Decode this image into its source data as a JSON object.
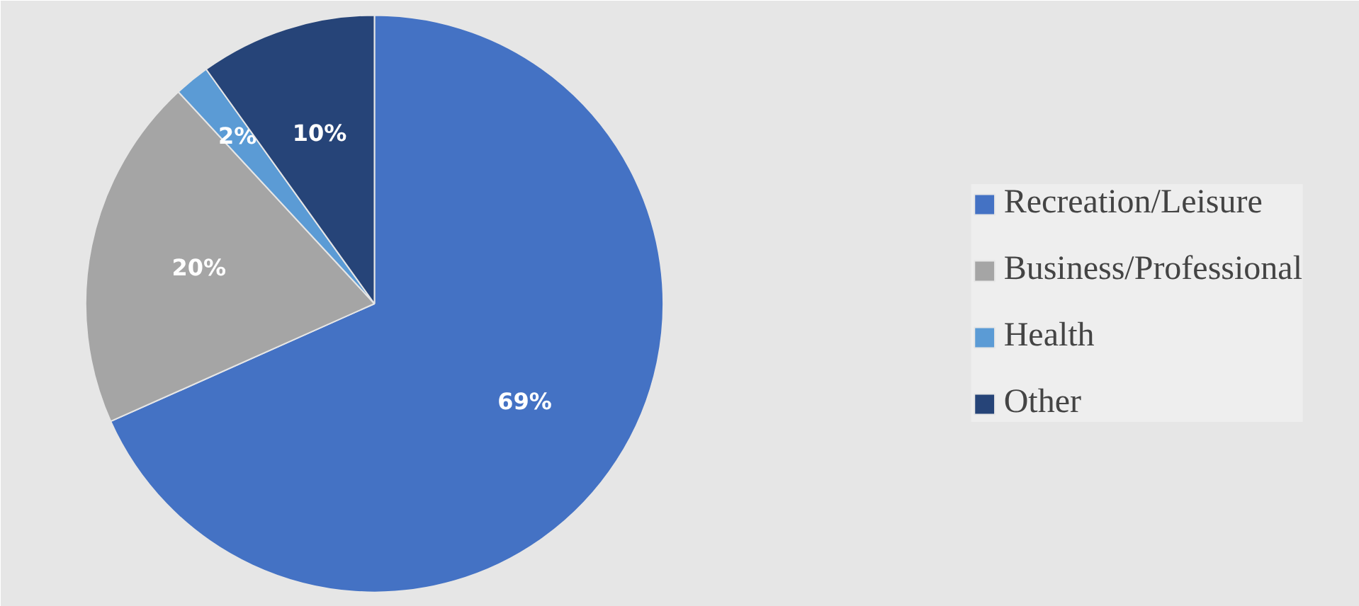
{
  "chart_data": {
    "type": "pie",
    "categories": [
      "Recreation/Leisure",
      "Business/Professional",
      "Health",
      "Other"
    ],
    "values": [
      69,
      20,
      2,
      10
    ],
    "colors": [
      "#4472c4",
      "#a5a5a5",
      "#5b9bd5",
      "#264478"
    ],
    "value_labels": [
      "69%",
      "20%",
      "2%",
      "10%"
    ],
    "legend": "right"
  }
}
